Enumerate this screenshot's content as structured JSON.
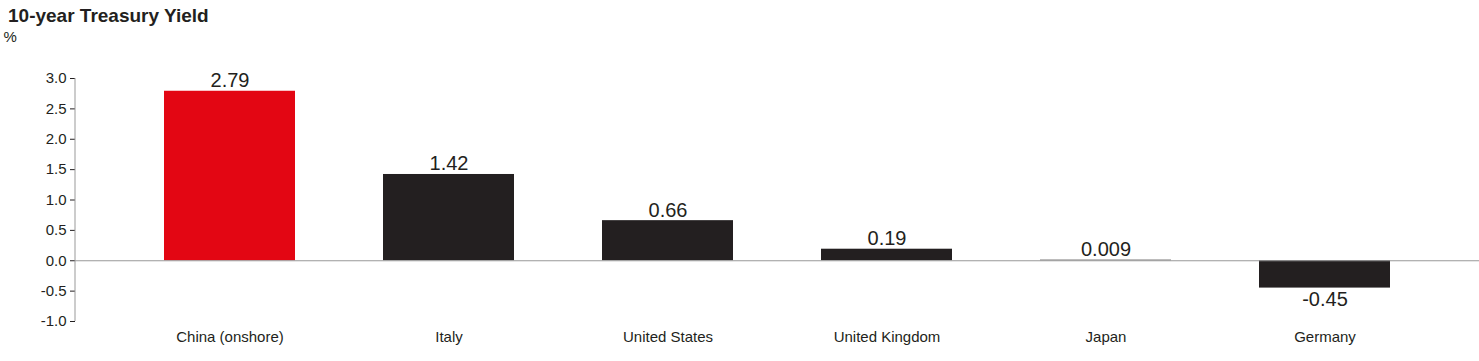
{
  "chart_data": {
    "type": "bar",
    "title": "10-year Treasury Yield",
    "y_label": "%",
    "categories": [
      "China (onshore)",
      "Italy",
      "United States",
      "United Kingdom",
      "Japan",
      "Germany"
    ],
    "values": [
      2.79,
      1.42,
      0.66,
      0.19,
      0.009,
      -0.45
    ],
    "colors": [
      "#e30613",
      "#231f20",
      "#231f20",
      "#231f20",
      "#231f20",
      "#231f20"
    ],
    "ylim": [
      -1,
      3
    ],
    "yticks": [
      {
        "value": -1,
        "label": "-1.0"
      },
      {
        "value": -0.5,
        "label": "-0.5"
      },
      {
        "value": 0,
        "label": "0.0"
      },
      {
        "value": 0.5,
        "label": "0.5"
      },
      {
        "value": 1,
        "label": "1.0"
      },
      {
        "value": 1.5,
        "label": "1.5"
      },
      {
        "value": 2,
        "label": "2.0"
      },
      {
        "value": 2.5,
        "label": "2.5"
      },
      {
        "value": 3,
        "label": "3.0"
      }
    ],
    "grid": false,
    "data_labels": true
  }
}
